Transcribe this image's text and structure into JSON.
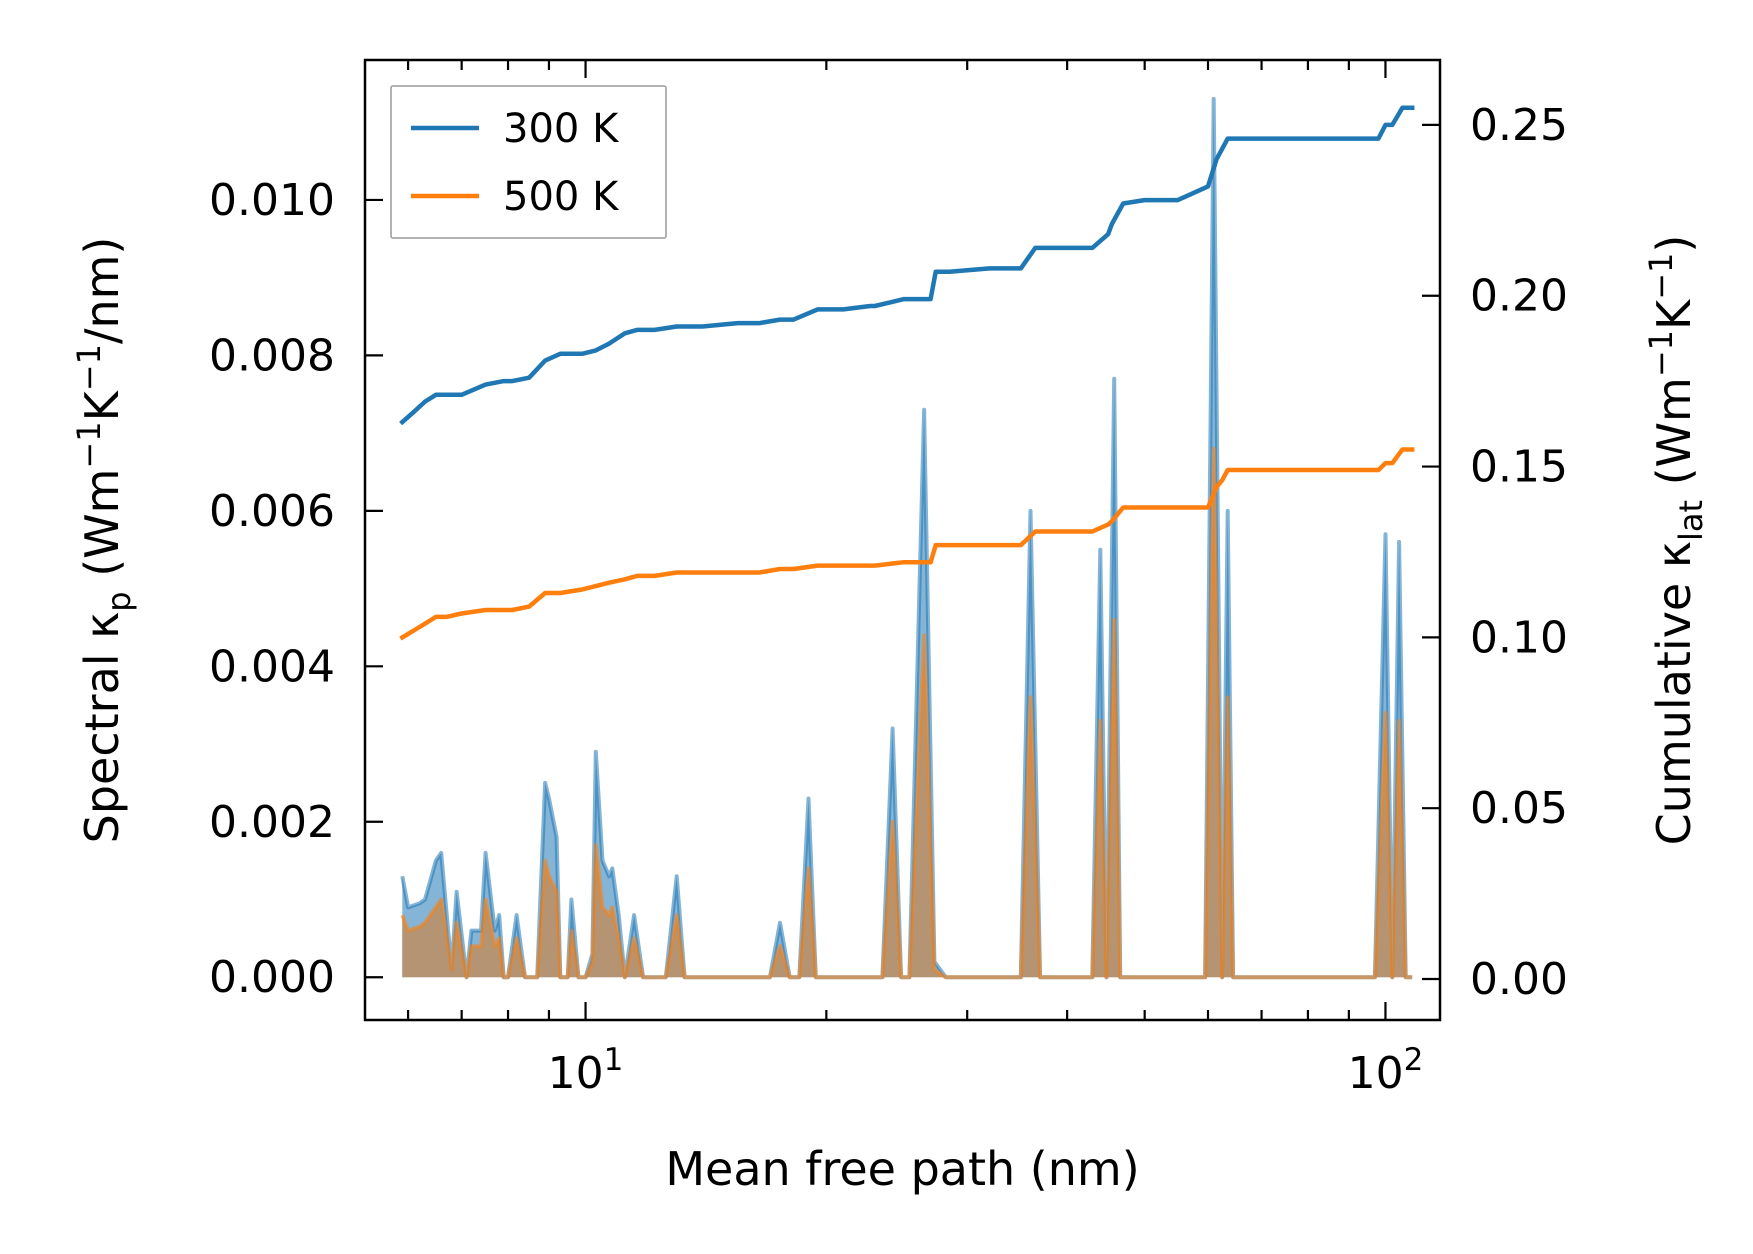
{
  "chart_data": {
    "type": "line",
    "xscale": "log",
    "xlabel": "Mean free path (nm)",
    "ylabel_left": {
      "main": "Spectral κ",
      "sub": "p",
      "unit_open": " (Wm",
      "sup1": "−1",
      "mid": "K",
      "sup2": "−1",
      "unit_close": "/nm)"
    },
    "ylabel_right": {
      "main": "Cumulative κ",
      "sub": "lat",
      "unit_open": " (Wm",
      "sup1": "−1",
      "mid": "K",
      "sup2": "−1",
      "unit_close": ")"
    },
    "xlim": [
      5.3,
      117
    ],
    "ylim_left": [
      -0.00055,
      0.0118
    ],
    "ylim_right": [
      -0.012,
      0.269
    ],
    "x_ticks": [
      {
        "value": 10,
        "base": "10",
        "exp": "1"
      },
      {
        "value": 100,
        "base": "10",
        "exp": "2"
      }
    ],
    "y_ticks_left": [
      {
        "value": 0,
        "label": "0.000"
      },
      {
        "value": 0.002,
        "label": "0.002"
      },
      {
        "value": 0.004,
        "label": "0.004"
      },
      {
        "value": 0.006,
        "label": "0.006"
      },
      {
        "value": 0.008,
        "label": "0.008"
      },
      {
        "value": 0.01,
        "label": "0.010"
      }
    ],
    "y_ticks_right": [
      {
        "value": 0,
        "label": "0.00"
      },
      {
        "value": 0.05,
        "label": "0.05"
      },
      {
        "value": 0.1,
        "label": "0.10"
      },
      {
        "value": 0.15,
        "label": "0.15"
      },
      {
        "value": 0.2,
        "label": "0.20"
      },
      {
        "value": 0.25,
        "label": "0.25"
      }
    ],
    "legend": {
      "placement": "top-left",
      "entries": [
        "300 K",
        "500 K"
      ]
    },
    "colors": {
      "300 K": "#1f77b4",
      "500 K": "#ff7f0e",
      "spectral_500_fill": "#c48a50"
    },
    "series": [
      {
        "name": "300 K",
        "axis": "right",
        "kind": "cumulative",
        "x": [
          5.9,
          6.1,
          6.3,
          6.5,
          6.7,
          7.0,
          7.5,
          7.9,
          8.1,
          8.5,
          8.9,
          9.3,
          9.9,
          10.3,
          10.7,
          11.2,
          11.6,
          12.2,
          13.0,
          14.0,
          15.5,
          16.5,
          17.5,
          18.2,
          19.5,
          21.0,
          22.7,
          23.0,
          25.0,
          27.0,
          27.4,
          28.5,
          32.0,
          35.0,
          36.5,
          40.0,
          43.0,
          45.0,
          45.5,
          47.0,
          50.0,
          55.0,
          60.0,
          61.5,
          62.5,
          63.5,
          65.0,
          70.0,
          80.0,
          90.0,
          98.0,
          100.0,
          102.0,
          105.0,
          108.0
        ],
        "y": [
          0.163,
          0.166,
          0.169,
          0.171,
          0.171,
          0.171,
          0.174,
          0.175,
          0.175,
          0.176,
          0.181,
          0.183,
          0.183,
          0.184,
          0.186,
          0.189,
          0.19,
          0.19,
          0.191,
          0.191,
          0.192,
          0.192,
          0.193,
          0.193,
          0.196,
          0.196,
          0.197,
          0.197,
          0.199,
          0.199,
          0.207,
          0.207,
          0.208,
          0.208,
          0.214,
          0.214,
          0.214,
          0.218,
          0.221,
          0.227,
          0.228,
          0.228,
          0.232,
          0.24,
          0.243,
          0.246,
          0.246,
          0.246,
          0.246,
          0.246,
          0.246,
          0.25,
          0.25,
          0.255,
          0.255
        ]
      },
      {
        "name": "500 K",
        "axis": "right",
        "kind": "cumulative",
        "x": [
          5.9,
          6.1,
          6.3,
          6.5,
          6.7,
          7.0,
          7.5,
          7.9,
          8.1,
          8.5,
          8.9,
          9.3,
          9.9,
          10.3,
          10.7,
          11.2,
          11.6,
          12.2,
          13.0,
          14.0,
          15.5,
          16.5,
          17.5,
          18.2,
          19.5,
          21.0,
          22.7,
          23.0,
          25.0,
          27.0,
          27.4,
          28.5,
          32.0,
          35.0,
          36.5,
          40.0,
          43.0,
          45.0,
          45.5,
          47.0,
          50.0,
          55.0,
          60.0,
          61.5,
          62.5,
          63.5,
          65.0,
          70.0,
          80.0,
          90.0,
          98.0,
          100.0,
          102.0,
          105.0,
          108.0
        ],
        "y": [
          0.1,
          0.102,
          0.104,
          0.106,
          0.106,
          0.107,
          0.108,
          0.108,
          0.108,
          0.109,
          0.113,
          0.113,
          0.114,
          0.115,
          0.116,
          0.117,
          0.118,
          0.118,
          0.119,
          0.119,
          0.119,
          0.119,
          0.12,
          0.12,
          0.121,
          0.121,
          0.121,
          0.121,
          0.122,
          0.122,
          0.127,
          0.127,
          0.127,
          0.127,
          0.131,
          0.131,
          0.131,
          0.133,
          0.134,
          0.138,
          0.138,
          0.138,
          0.138,
          0.144,
          0.146,
          0.149,
          0.149,
          0.149,
          0.149,
          0.149,
          0.149,
          0.151,
          0.151,
          0.155,
          0.155
        ]
      },
      {
        "name": "300 K",
        "axis": "left",
        "kind": "spectral",
        "x": [
          5.9,
          6.0,
          6.2,
          6.3,
          6.5,
          6.6,
          6.8,
          6.9,
          7.1,
          7.2,
          7.4,
          7.5,
          7.7,
          7.8,
          7.9,
          8.0,
          8.2,
          8.4,
          8.6,
          8.7,
          8.9,
          9.0,
          9.2,
          9.3,
          9.5,
          9.6,
          9.8,
          10.0,
          10.2,
          10.3,
          10.5,
          10.7,
          10.8,
          11.0,
          11.2,
          11.5,
          11.8,
          12.2,
          12.6,
          13.0,
          13.3,
          13.6,
          14.0,
          17.0,
          17.5,
          18.0,
          18.5,
          19.0,
          19.4,
          19.9,
          20.5,
          23.5,
          24.2,
          24.8,
          25.4,
          26.5,
          27.3,
          28.2,
          28.8,
          35.0,
          36.0,
          37.0,
          38.0,
          43.0,
          44.0,
          44.8,
          45.8,
          46.6,
          47.5,
          48.5,
          58.0,
          59.5,
          61.0,
          62.5,
          63.5,
          64.5,
          65.5,
          97.0,
          100.0,
          102.0,
          104.0,
          106.0,
          108.0
        ],
        "y": [
          0.0013,
          0.0009,
          0.00095,
          0.001,
          0.0015,
          0.0016,
          0.0001,
          0.0011,
          0.0,
          0.0006,
          0.0006,
          0.0016,
          0.0006,
          0.0008,
          0.0,
          0.0,
          0.0008,
          0.0,
          0.0,
          0.0,
          0.0025,
          0.0023,
          0.0018,
          0.0,
          0.0,
          0.001,
          0.0,
          0.0,
          0.0003,
          0.0029,
          0.0015,
          0.0013,
          0.0014,
          0.0008,
          0.0,
          0.0008,
          0.0,
          0.0,
          0.0,
          0.0013,
          0.0,
          0.0,
          0.0,
          0.0,
          0.0007,
          0.0,
          0.0,
          0.0023,
          0.0,
          0.0,
          0.0,
          0.0,
          0.0032,
          0.0,
          0.0,
          0.0073,
          0.0002,
          0.0,
          0.0,
          0.0,
          0.006,
          0.0,
          0.0,
          0.0,
          0.0055,
          0.0,
          0.0077,
          0.0,
          0.0,
          0.0,
          0.0,
          0.0,
          0.0113,
          0.0,
          0.006,
          0.0,
          0.0,
          0.0,
          0.0057,
          0.0,
          0.0056,
          0.0,
          0.0
        ]
      },
      {
        "name": "500 K",
        "axis": "left",
        "kind": "spectral",
        "x": [
          5.9,
          6.0,
          6.2,
          6.3,
          6.5,
          6.6,
          6.8,
          6.9,
          7.1,
          7.2,
          7.4,
          7.5,
          7.7,
          7.8,
          7.9,
          8.0,
          8.2,
          8.4,
          8.6,
          8.7,
          8.9,
          9.0,
          9.2,
          9.3,
          9.5,
          9.6,
          9.8,
          10.0,
          10.2,
          10.3,
          10.5,
          10.7,
          10.8,
          11.0,
          11.2,
          11.5,
          11.8,
          12.2,
          12.6,
          13.0,
          13.3,
          13.6,
          14.0,
          17.0,
          17.5,
          18.0,
          18.5,
          19.0,
          19.4,
          19.9,
          20.5,
          23.5,
          24.2,
          24.8,
          25.4,
          26.5,
          27.3,
          28.2,
          28.8,
          35.0,
          36.0,
          37.0,
          38.0,
          43.0,
          44.0,
          44.8,
          45.8,
          46.6,
          47.5,
          48.5,
          58.0,
          59.5,
          61.0,
          62.5,
          63.5,
          64.5,
          65.5,
          97.0,
          100.0,
          102.0,
          104.0,
          106.0,
          108.0
        ],
        "y": [
          0.0008,
          0.0006,
          0.00065,
          0.0007,
          0.0009,
          0.001,
          0.0001,
          0.0007,
          0.0,
          0.0004,
          0.0004,
          0.001,
          0.0004,
          0.0005,
          0.0,
          0.0,
          0.0005,
          0.0,
          0.0,
          0.0,
          0.0015,
          0.0013,
          0.0011,
          0.0,
          0.0,
          0.0006,
          0.0,
          0.0,
          0.0002,
          0.0017,
          0.0009,
          0.0008,
          0.0009,
          0.0005,
          0.0,
          0.0005,
          0.0,
          0.0,
          0.0,
          0.0008,
          0.0,
          0.0,
          0.0,
          0.0,
          0.0004,
          0.0,
          0.0,
          0.0014,
          0.0,
          0.0,
          0.0,
          0.0,
          0.002,
          0.0,
          0.0,
          0.0044,
          0.0001,
          0.0,
          0.0,
          0.0,
          0.0036,
          0.0,
          0.0,
          0.0,
          0.0033,
          0.0,
          0.0046,
          0.0,
          0.0,
          0.0,
          0.0,
          0.0,
          0.0068,
          0.0,
          0.0036,
          0.0,
          0.0,
          0.0,
          0.0034,
          0.0,
          0.0033,
          0.0,
          0.0
        ]
      }
    ]
  }
}
